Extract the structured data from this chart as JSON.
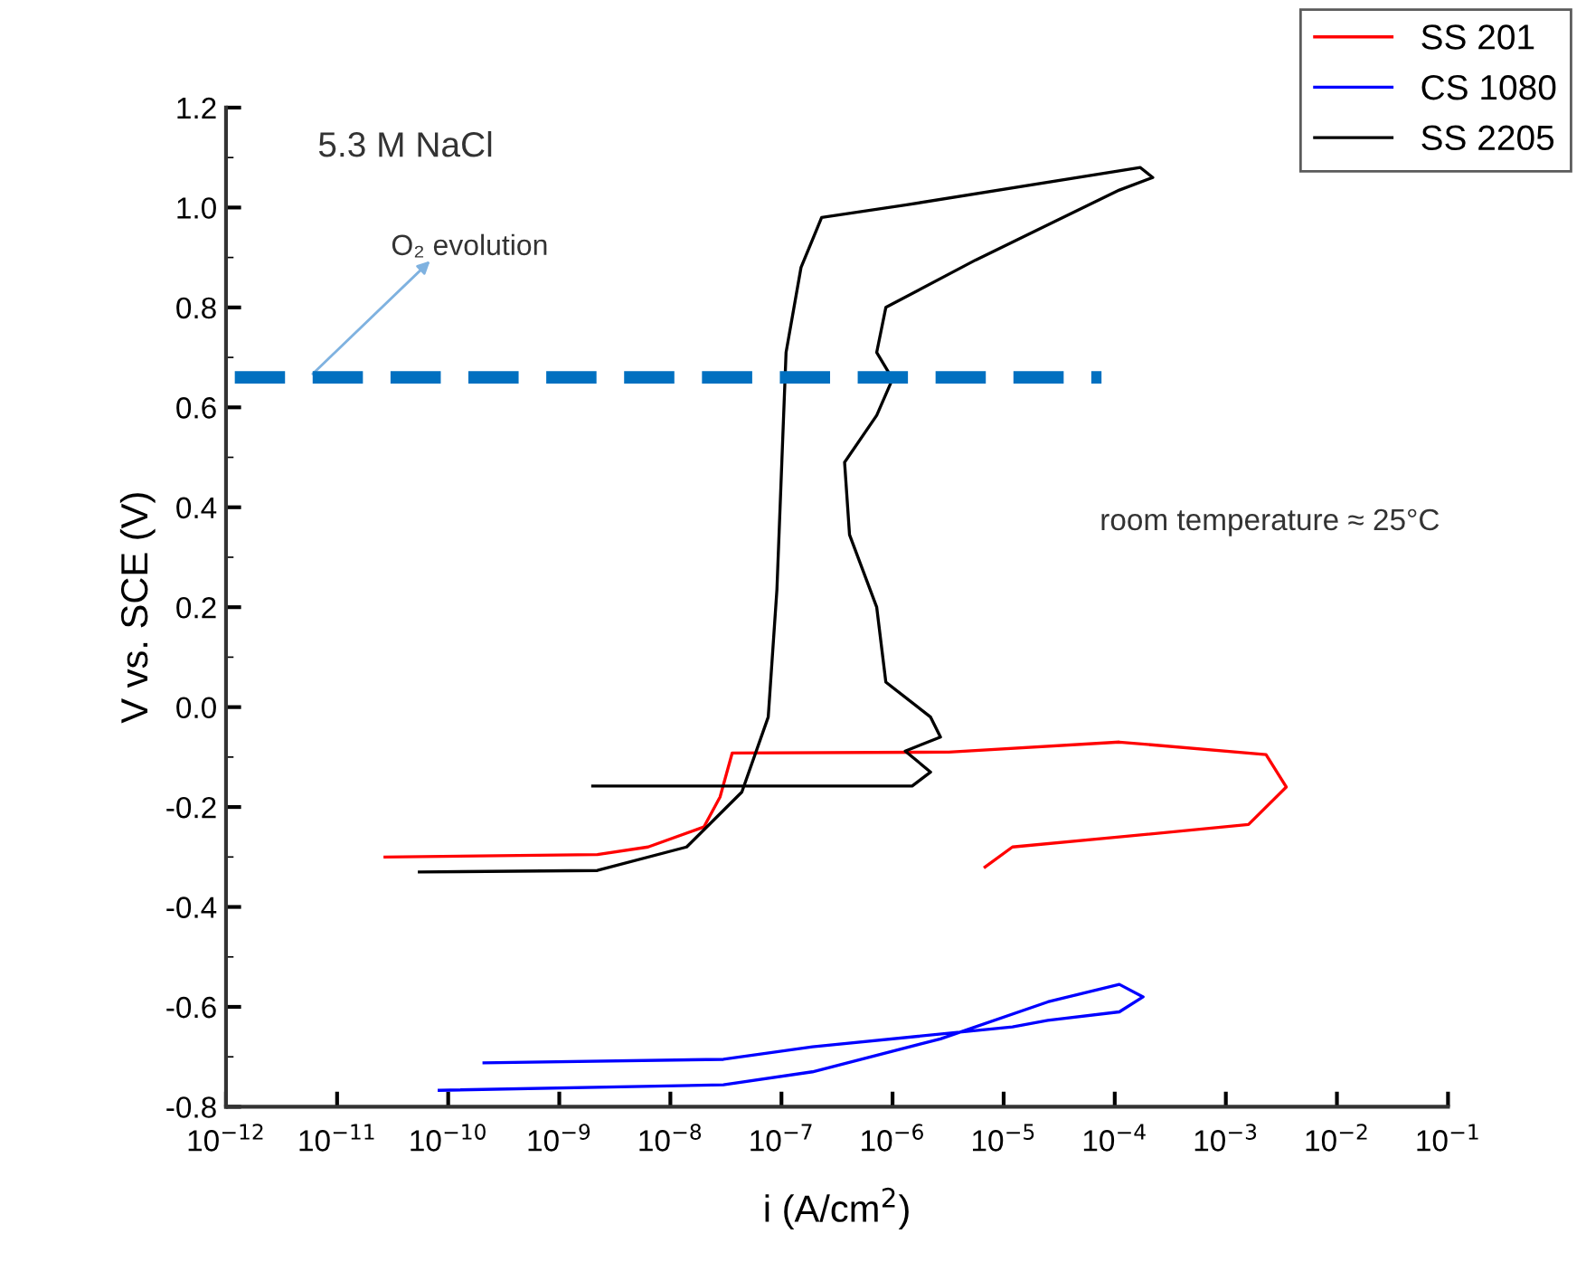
{
  "chart_data": {
    "type": "line",
    "xlabel": "i (A/cm$^{2}$)",
    "ylabel": "V vs. SCE (V)",
    "log": "x",
    "legend": "top right",
    "grid": false,
    "marker": "none",
    "line_style": "solid",
    "xlim": [
      1e-12,
      0.1
    ],
    "xticks": [
      {
        "value": 1e-12,
        "label": "10$^{−12}$"
      },
      {
        "value": 1e-11,
        "label": "10$^{−11}$"
      },
      {
        "value": 1e-10,
        "label": "10$^{−10}$"
      },
      {
        "value": 1e-09,
        "label": "10$^{−9}$"
      },
      {
        "value": 1e-08,
        "label": "10$^{−8}$"
      },
      {
        "value": 1e-07,
        "label": "10$^{−7}$"
      },
      {
        "value": 1e-06,
        "label": "10$^{−6}$"
      },
      {
        "value": 1e-05,
        "label": "10$^{−5}$"
      },
      {
        "value": 0.0001,
        "label": "10$^{−4}$"
      },
      {
        "value": 0.001,
        "label": "10$^{−3}$"
      },
      {
        "value": 0.01,
        "label": "10$^{−2}$"
      },
      {
        "value": 0.1,
        "label": "10$^{−1}$"
      }
    ],
    "ylim": [
      -0.8,
      1.2
    ],
    "yticks": [
      -0.8,
      -0.6,
      -0.4,
      -0.2,
      {
        "value": 0,
        "label": "0.0"
      },
      0.2,
      0.4,
      0.6,
      0.8,
      {
        "value": 1,
        "label": "1.0"
      },
      1.2
    ],
    "annotations": [
      "5.3 M NaCl",
      "O₂ evolution",
      "room temperature ≈ 25°C"
    ],
    "series": [
      {
        "name": "SS 201",
        "color": "#ff0000",
        "x": [
          2.7e-11,
          2.2e-09,
          6.3e-09,
          2e-08,
          2.8e-08,
          3.6e-08,
          3.2e-06,
          0.00011,
          0.0023,
          0.0035,
          0.0016,
          0.00011,
          1.2e-05,
          6.8e-06
        ],
        "values": [
          -0.3,
          -0.295,
          -0.28,
          -0.24,
          -0.18,
          -0.092,
          -0.09,
          -0.07,
          -0.095,
          -0.16,
          -0.235,
          -0.26,
          -0.28,
          -0.32
        ]
      },
      {
        "name": "CS 1080",
        "color": "#0000ff",
        "x": [
          8.3e-11,
          3e-08,
          1.9e-07,
          2.7e-06,
          2.5e-05,
          0.00011,
          0.00018,
          0.00011,
          2.5e-05,
          1.2e-05,
          1.9e-07,
          3e-08,
          2.1e-10
        ],
        "values": [
          -0.767,
          -0.756,
          -0.73,
          -0.664,
          -0.59,
          -0.555,
          -0.58,
          -0.61,
          -0.627,
          -0.64,
          -0.68,
          -0.705,
          -0.712
        ]
      },
      {
        "name": "SS 2205",
        "color": "#000000",
        "x": [
          5.5e-11,
          2.2e-09,
          1.4e-08,
          4.4e-08,
          7.6e-08,
          9.1e-08,
          1.1e-07,
          1.5e-07,
          2.3e-07,
          1.3e-06,
          0.00017,
          0.00022,
          0.00011,
          5.6e-06,
          8.7e-07,
          7.2e-07,
          1e-06,
          7.2e-07,
          3.7e-07,
          4.1e-07,
          7.2e-07,
          8.7e-07,
          2.2e-06,
          2.7e-06,
          1.3e-06,
          2.2e-06,
          1.5e-06,
          2e-09
        ],
        "values": [
          -0.33,
          -0.327,
          -0.28,
          -0.17,
          -0.02,
          0.235,
          0.71,
          0.88,
          0.98,
          1.005,
          1.08,
          1.06,
          1.035,
          0.895,
          0.8,
          0.71,
          0.657,
          0.584,
          0.49,
          0.345,
          0.2,
          0.05,
          -0.02,
          -0.06,
          -0.088,
          -0.13,
          -0.158,
          -0.158
        ]
      },
      {
        "color": "#0070c0",
        "line_style": "dashed",
        "x": [
          1.2e-12,
          7.6e-05
        ],
        "values": [
          0.66,
          0.66
        ]
      }
    ]
  }
}
